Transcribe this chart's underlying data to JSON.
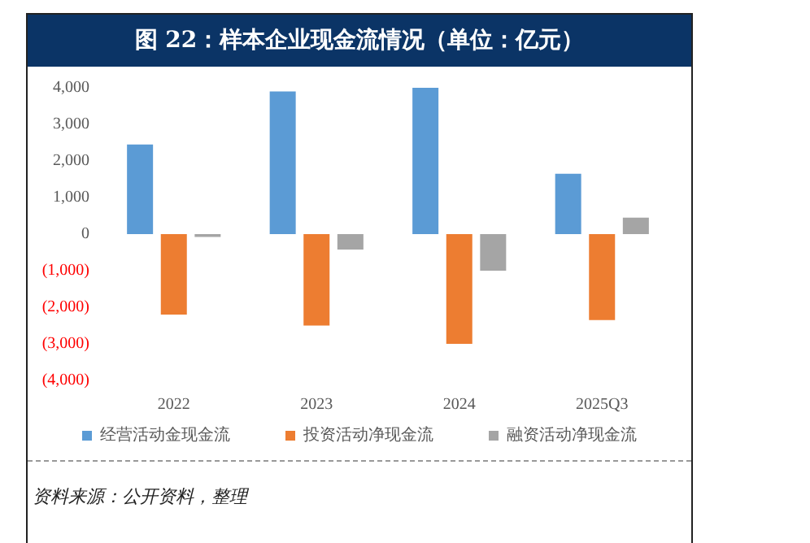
{
  "chart_data": {
    "type": "bar",
    "title": "图 22：样本企业现金流情况（单位：亿元）",
    "categories": [
      "2022",
      "2023",
      "2024",
      "2025Q3"
    ],
    "series": [
      {
        "name": "经营活动金现金流",
        "color": "#5b9bd5",
        "values": [
          2450,
          3900,
          4000,
          1650
        ]
      },
      {
        "name": "投资活动净现金流",
        "color": "#ed7d31",
        "values": [
          -2200,
          -2500,
          -3000,
          -2350
        ]
      },
      {
        "name": "融资活动净现金流",
        "color": "#a5a5a5",
        "values": [
          -80,
          -420,
          -1000,
          450
        ]
      }
    ],
    "ylim": [
      -4000,
      4000
    ],
    "yticks": [
      {
        "value": -4000,
        "label": "(4,000)"
      },
      {
        "value": -3000,
        "label": "(3,000)"
      },
      {
        "value": -2000,
        "label": "(2,000)"
      },
      {
        "value": -1000,
        "label": "(1,000)"
      },
      0,
      {
        "value": 1000,
        "label": "1,000"
      },
      {
        "value": 2000,
        "label": "2,000"
      },
      {
        "value": 3000,
        "label": "3,000"
      },
      {
        "value": 4000,
        "label": "4,000"
      }
    ],
    "grid": false,
    "legend": "bottom",
    "annotations": [
      "资料来源：公开资料，整理"
    ]
  }
}
